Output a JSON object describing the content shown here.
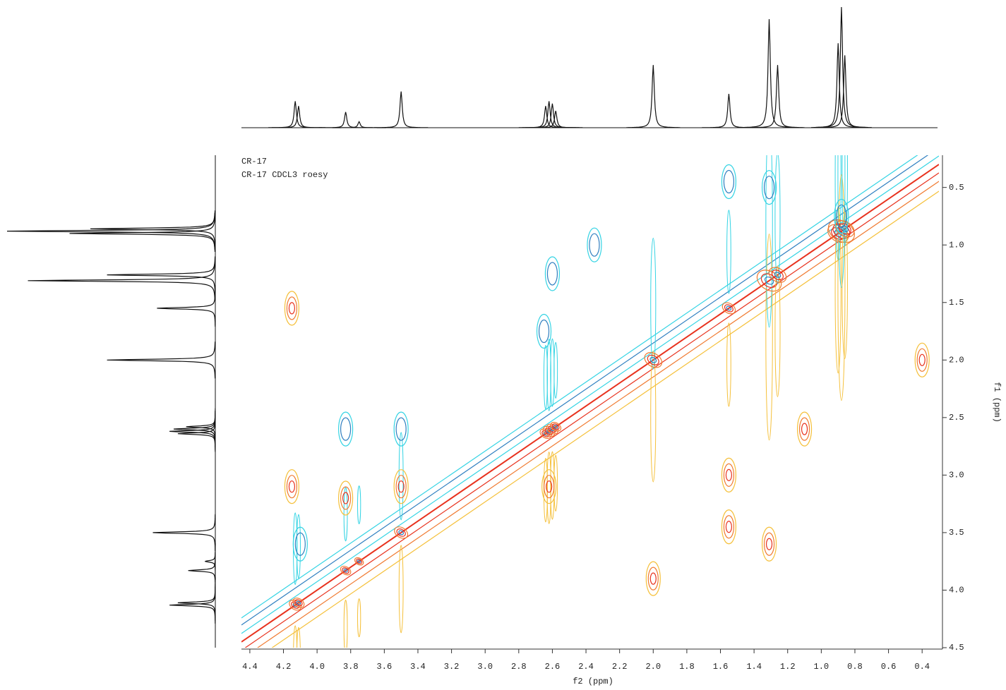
{
  "chart_data": {
    "type": "nmr2d",
    "title": "CR-17",
    "subtitle": "CR-17 CDCL3 roesy",
    "x_label": "f2 (ppm)",
    "y_label": "f1 (ppm)",
    "xlim": [
      4.45,
      0.3
    ],
    "ylim": [
      0.22,
      4.5
    ],
    "xticks": [
      4.4,
      4.2,
      {
        "value": 4,
        "label": "4.0"
      },
      3.8,
      3.6,
      3.4,
      3.2,
      {
        "value": 3,
        "label": "3.0"
      },
      2.8,
      2.6,
      2.4,
      2.2,
      {
        "value": 2,
        "label": "2.0"
      },
      1.8,
      1.6,
      1.4,
      1.2,
      {
        "value": 1,
        "label": "1.0"
      },
      0.8,
      0.6,
      0.4
    ],
    "yticks": [
      0.5,
      {
        "value": 1,
        "label": "1.0"
      },
      1.5,
      {
        "value": 2,
        "label": "2.0"
      },
      2.5,
      {
        "value": 3,
        "label": "3.0"
      },
      3.5,
      {
        "value": 4,
        "label": "4.0"
      },
      4.5
    ],
    "projection": {
      "ppm": [
        4.13,
        4.11,
        3.83,
        3.75,
        3.5,
        2.64,
        2.62,
        2.6,
        2.58,
        2.0,
        1.55,
        1.31,
        1.26,
        0.9,
        0.88,
        0.86
      ],
      "height": [
        22,
        18,
        13,
        5,
        30,
        18,
        22,
        20,
        14,
        52,
        28,
        90,
        52,
        70,
        100,
        60
      ]
    },
    "cross_peaks": {
      "f2": [
        4.15,
        4.15,
        3.83,
        3.5,
        2.62,
        1.55,
        1.31,
        2.0,
        0.4,
        2.6,
        3.5,
        3.83,
        4.1,
        2.65,
        2.35,
        1.55,
        1.31,
        0.88,
        1.1,
        1.55
      ],
      "f1": [
        1.55,
        3.1,
        3.2,
        3.1,
        3.1,
        3.0,
        3.6,
        3.9,
        2.0,
        1.25,
        2.6,
        2.6,
        3.6,
        1.75,
        1.0,
        0.45,
        0.5,
        0.75,
        2.6,
        3.45
      ],
      "phase": [
        "negative",
        "negative",
        "negative",
        "negative",
        "negative",
        "negative",
        "negative",
        "negative",
        "negative",
        "positive",
        "positive",
        "positive",
        "positive",
        "positive",
        "positive",
        "positive",
        "positive",
        "positive",
        "negative",
        "negative"
      ]
    },
    "colors": {
      "positive": [
        "#35d4e4",
        "#2f7fc0"
      ],
      "negative": [
        "#f5c03a",
        "#f07a30",
        "#e8321e"
      ],
      "trace": "#111111"
    }
  }
}
